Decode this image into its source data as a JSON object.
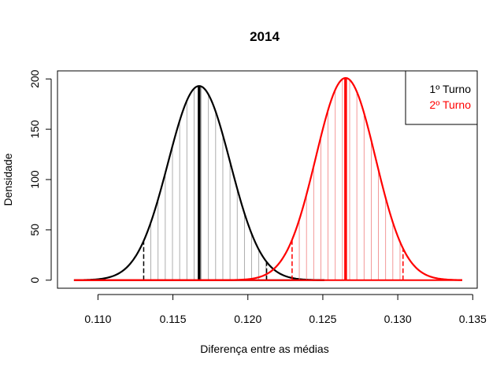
{
  "chart_data": {
    "type": "line",
    "title": "2014",
    "xlabel": "Diferença entre as médias",
    "ylabel": "Densidade",
    "xlim": [
      0.1073,
      0.1353
    ],
    "ylim": [
      -8,
      208
    ],
    "x_ticks": [
      0.11,
      0.115,
      0.12,
      0.125,
      0.13,
      0.135
    ],
    "x_tick_labels": [
      "0.110",
      "0.115",
      "0.120",
      "0.125",
      "0.130",
      "0.135"
    ],
    "y_ticks": [
      0,
      50,
      100,
      150,
      200
    ],
    "y_tick_labels": [
      "0",
      "50",
      "100",
      "150",
      "200"
    ],
    "legend": {
      "position": "top-right"
    },
    "series": [
      {
        "name": "1º Turno",
        "color": "#000000",
        "distribution": "normal",
        "mean": 0.11675,
        "sd": 0.00207,
        "peak_density": 193,
        "x_range": [
          0.1084,
          0.1251
        ],
        "lower_limit": 0.11305,
        "upper_limit": 0.12125
      },
      {
        "name": "2º Turno",
        "color": "#ff0000",
        "distribution": "normal",
        "mean": 0.12652,
        "sd": 0.00199,
        "peak_density": 201,
        "x_range": [
          0.1084,
          0.1343
        ],
        "lower_limit": 0.12295,
        "upper_limit": 0.13035
      }
    ]
  }
}
